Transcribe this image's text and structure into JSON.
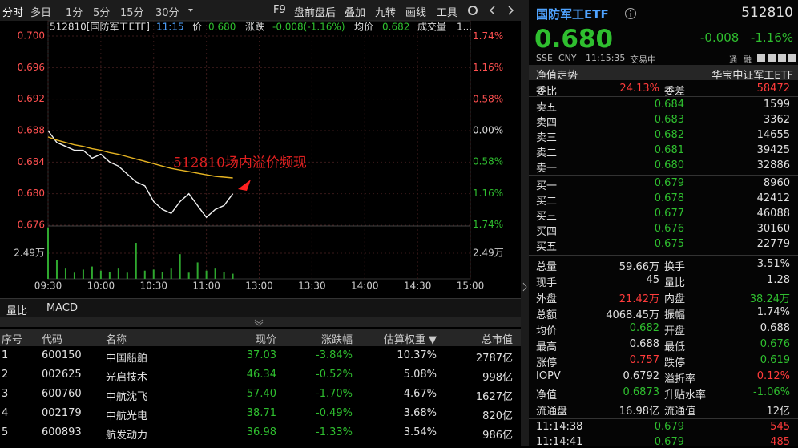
{
  "toolbar": {
    "left_tabs": [
      "分时",
      "多日",
      "1分",
      "5分",
      "15分",
      "30分"
    ],
    "right_tools": [
      "F9",
      "盘前盘后",
      "叠加",
      "九转",
      "画线",
      "工具"
    ]
  },
  "chart_data": {
    "type": "line",
    "header": {
      "code_name": "512810[国防军工ETF]",
      "time": "11:15",
      "price_label": "价",
      "price": "0.680",
      "change_label": "涨跌",
      "change": "-0.008(-1.16%)",
      "avg_label": "均价",
      "avg": "0.682",
      "volume_label": "成交量",
      "volume": "1..."
    },
    "annotation": "512810场内溢价频现",
    "x": [
      "09:30",
      "09:35",
      "09:40",
      "09:45",
      "09:50",
      "09:55",
      "10:00",
      "10:05",
      "10:10",
      "10:15",
      "10:20",
      "10:25",
      "10:30",
      "10:35",
      "10:40",
      "10:45",
      "10:50",
      "10:55",
      "11:00",
      "11:05",
      "11:10",
      "11:15"
    ],
    "series": [
      {
        "color": "#f0f0f0",
        "values": [
          0.688,
          0.6865,
          0.686,
          0.6855,
          0.6855,
          0.6845,
          0.685,
          0.684,
          0.6835,
          0.6825,
          0.6815,
          0.681,
          0.679,
          0.678,
          0.6775,
          0.679,
          0.68,
          0.6785,
          0.677,
          0.678,
          0.6785,
          0.68
        ]
      },
      {
        "color": "#e6b422",
        "values": [
          0.6872,
          0.6868,
          0.6865,
          0.6862,
          0.686,
          0.6857,
          0.6855,
          0.6852,
          0.685,
          0.6847,
          0.6844,
          0.6841,
          0.6838,
          0.6835,
          0.6832,
          0.683,
          0.6828,
          0.6826,
          0.6824,
          0.6822,
          0.6821,
          0.682
        ]
      }
    ],
    "xticks": [
      "09:30",
      "10:00",
      "10:30",
      "11:00",
      "13:00",
      "13:30",
      "14:00",
      "14:30",
      "15:00"
    ],
    "ylim": [
      0.676,
      0.7
    ],
    "yticks": [
      {
        "value": 0.7,
        "label": "0.700"
      },
      0.696,
      0.692,
      0.688,
      0.684,
      {
        "value": 0.68,
        "label": "0.680"
      },
      0.676
    ],
    "y2lim": [
      -1.744,
      1.744
    ],
    "y2ticks": [
      {
        "value": 1.74,
        "label": "1.74%"
      },
      {
        "value": 1.16,
        "label": "1.16%"
      },
      {
        "value": 0.58,
        "label": "0.58%"
      },
      {
        "value": 0,
        "label": "0.00%"
      },
      {
        "value": -0.58,
        "label": "0.58%"
      },
      {
        "value": -1.16,
        "label": "1.16%"
      },
      {
        "value": -1.74,
        "label": "1.74%"
      }
    ],
    "grid": true,
    "volume": {
      "color": "#2fa82f",
      "values": [
        5.0,
        1.8,
        1.0,
        0.6,
        0.9,
        1.2,
        0.8,
        0.7,
        1.0,
        0.6,
        3.5,
        0.8,
        0.9,
        0.7,
        1.0,
        2.4,
        0.6,
        1.6,
        0.8,
        1.0,
        0.7,
        0.5
      ],
      "ylim": [
        0,
        5.06
      ],
      "yticks": [
        {
          "value": 2.49,
          "label": "2.49万"
        }
      ]
    }
  },
  "indicator_tabs": [
    "量比",
    "MACD"
  ],
  "table": {
    "headers": [
      "序号",
      "代码",
      "名称",
      "现价",
      "涨跌幅",
      "估算权重 ▼",
      "总市值"
    ],
    "rows": [
      [
        "1",
        "600150",
        "中国船舶",
        "37.03",
        "-3.84%",
        "10.37%",
        "2787亿"
      ],
      [
        "2",
        "002625",
        "光启技术",
        "46.34",
        "-0.52%",
        "5.08%",
        "998亿"
      ],
      [
        "3",
        "600760",
        "中航沈飞",
        "57.40",
        "-1.70%",
        "4.67%",
        "1627亿"
      ],
      [
        "4",
        "002179",
        "中航光电",
        "38.71",
        "-0.49%",
        "3.68%",
        "820亿"
      ],
      [
        "5",
        "600893",
        "航发动力",
        "36.98",
        "-1.33%",
        "3.54%",
        "986亿"
      ]
    ]
  },
  "quote": {
    "name": "国防军工ETF",
    "code": "512810",
    "price": "0.680",
    "change": "-0.008",
    "change_pct": "-1.16%",
    "exchange": "SSE",
    "currency": "CNY",
    "time": "11:15:35",
    "status": "交易中",
    "badges": [
      "通",
      "融"
    ]
  },
  "order_book": {
    "title_left": "净值走势",
    "title_right": "华宝中证军工ETF",
    "ratio_label": "委比",
    "ratio": "24.13%",
    "diff_label": "委差",
    "diff": "58472",
    "asks": [
      {
        "label": "卖五",
        "price": "0.684",
        "volume": "1599"
      },
      {
        "label": "卖四",
        "price": "0.683",
        "volume": "3362"
      },
      {
        "label": "卖三",
        "price": "0.682",
        "volume": "14655"
      },
      {
        "label": "卖二",
        "price": "0.681",
        "volume": "39425"
      },
      {
        "label": "卖一",
        "price": "0.680",
        "volume": "32886"
      }
    ],
    "bids": [
      {
        "label": "买一",
        "price": "0.679",
        "volume": "8960"
      },
      {
        "label": "买二",
        "price": "0.678",
        "volume": "42412"
      },
      {
        "label": "买三",
        "price": "0.677",
        "volume": "46088"
      },
      {
        "label": "买四",
        "price": "0.676",
        "volume": "30160"
      },
      {
        "label": "买五",
        "price": "0.675",
        "volume": "22779"
      }
    ]
  },
  "stats": [
    [
      {
        "label": "总量",
        "value": "59.66万",
        "color": "#e0e0e0"
      },
      {
        "label": "换手",
        "value": "3.51%",
        "color": "#e0e0e0"
      }
    ],
    [
      {
        "label": "现手",
        "value": "45",
        "color": "#e0e0e0"
      },
      {
        "label": "量比",
        "value": "1.28",
        "color": "#e0e0e0"
      }
    ],
    [
      {
        "label": "外盘",
        "value": "21.42万",
        "color": "#ff3b3b"
      },
      {
        "label": "内盘",
        "value": "38.24万",
        "color": "#2fbf2f"
      }
    ],
    [
      {
        "label": "总额",
        "value": "4068.45万",
        "color": "#e0e0e0"
      },
      {
        "label": "振幅",
        "value": "1.74%",
        "color": "#e0e0e0"
      }
    ],
    [
      {
        "label": "均价",
        "value": "0.682",
        "color": "#2fbf2f"
      },
      {
        "label": "开盘",
        "value": "0.688",
        "color": "#e0e0e0"
      }
    ],
    [
      {
        "label": "最高",
        "value": "0.688",
        "color": "#e0e0e0"
      },
      {
        "label": "最低",
        "value": "0.676",
        "color": "#2fbf2f"
      }
    ],
    [
      {
        "label": "涨停",
        "value": "0.757",
        "color": "#ff3b3b"
      },
      {
        "label": "跌停",
        "value": "0.619",
        "color": "#2fbf2f"
      }
    ],
    [
      {
        "label": "IOPV",
        "value": "0.6792",
        "color": "#e0e0e0"
      },
      {
        "label": "溢折率",
        "value": "0.12%",
        "color": "#ff3b3b"
      }
    ],
    [
      {
        "label": "净值",
        "value": "0.6873",
        "color": "#2fbf2f"
      },
      {
        "label": "升贴水率",
        "value": "-1.06%",
        "color": "#2fbf2f"
      }
    ],
    [
      {
        "label": "流通盘",
        "value": "16.98亿",
        "color": "#e0e0e0"
      },
      {
        "label": "流通值",
        "value": "12亿",
        "color": "#e0e0e0"
      }
    ]
  ],
  "trades": [
    {
      "time": "11:14:38",
      "price": "0.679",
      "volume": "545",
      "color": "#ff3b3b"
    },
    {
      "time": "11:14:41",
      "price": "0.679",
      "volume": "485",
      "color": "#ff3b3b"
    }
  ]
}
